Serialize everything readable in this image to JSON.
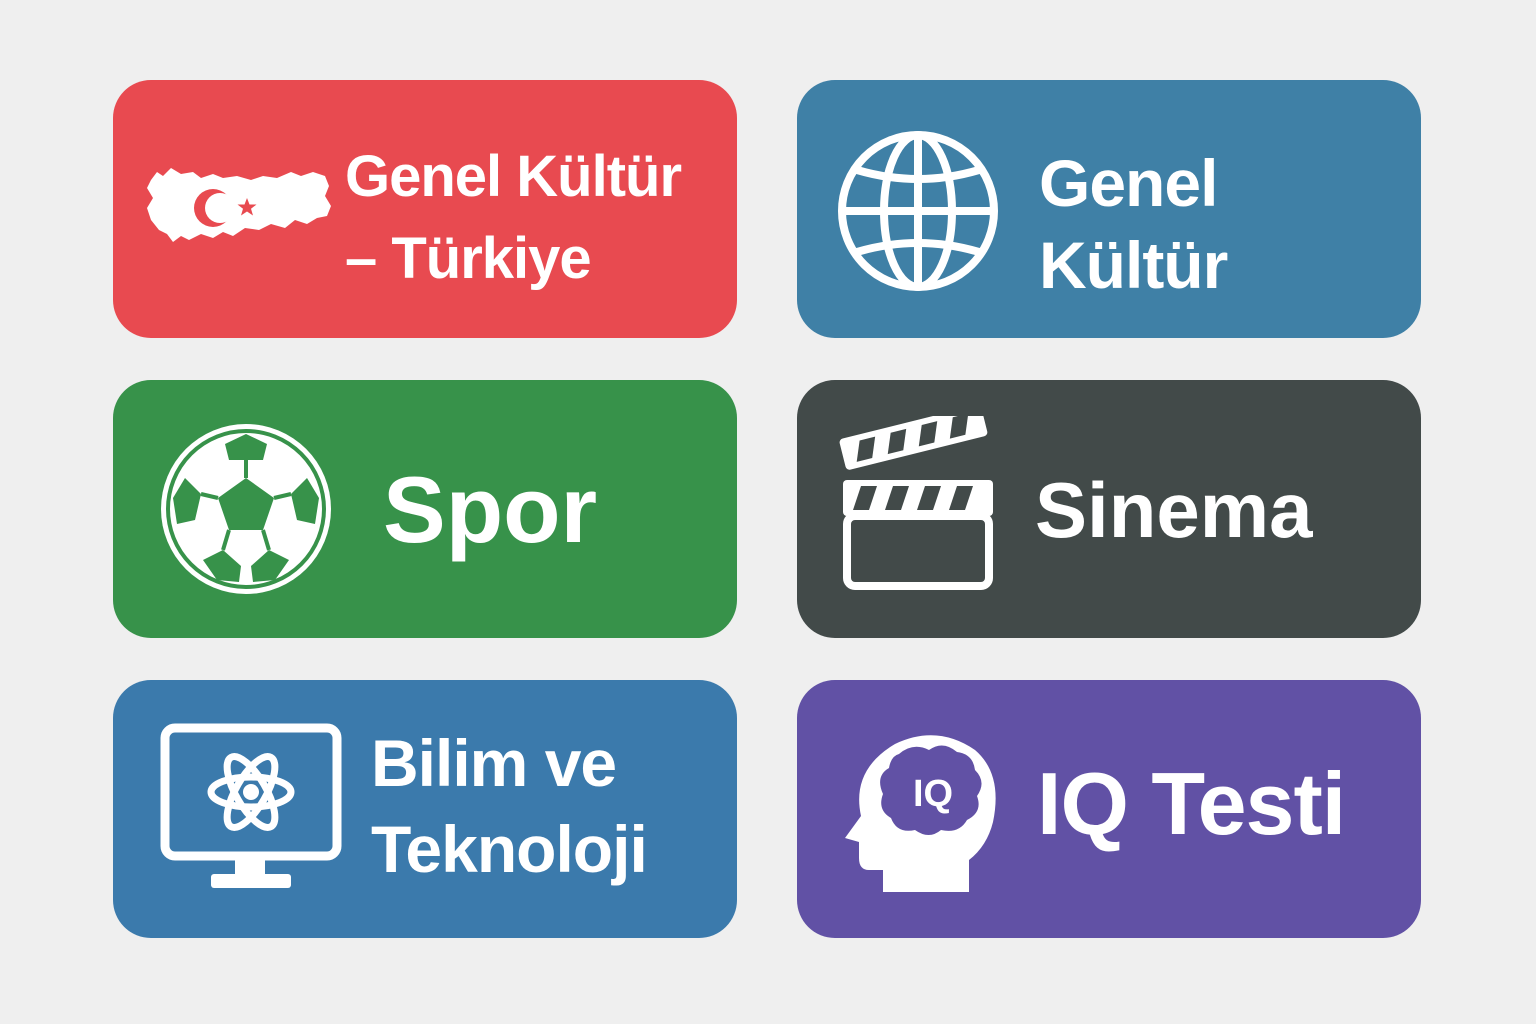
{
  "background_color": "#efefef",
  "cards": [
    {
      "lines": [
        "Genel Kültür",
        "– Türkiye"
      ],
      "icon": "turkey-map-icon",
      "color": "#e84a50"
    },
    {
      "lines": [
        "Genel",
        "Kültür"
      ],
      "icon": "globe-icon",
      "color": "#3f80a6"
    },
    {
      "lines": [
        "Spor"
      ],
      "icon": "soccer-ball-icon",
      "color": "#37924a"
    },
    {
      "lines": [
        "Sinema"
      ],
      "icon": "clapperboard-icon",
      "color": "#424a49"
    },
    {
      "lines": [
        "Bilim ve",
        "Teknoloji"
      ],
      "icon": "monitor-atom-icon",
      "color": "#3b7aac"
    },
    {
      "lines": [
        "IQ Testi"
      ],
      "icon": "head-brain-iq-icon",
      "color": "#6151a5",
      "icon_text": "IQ"
    }
  ]
}
